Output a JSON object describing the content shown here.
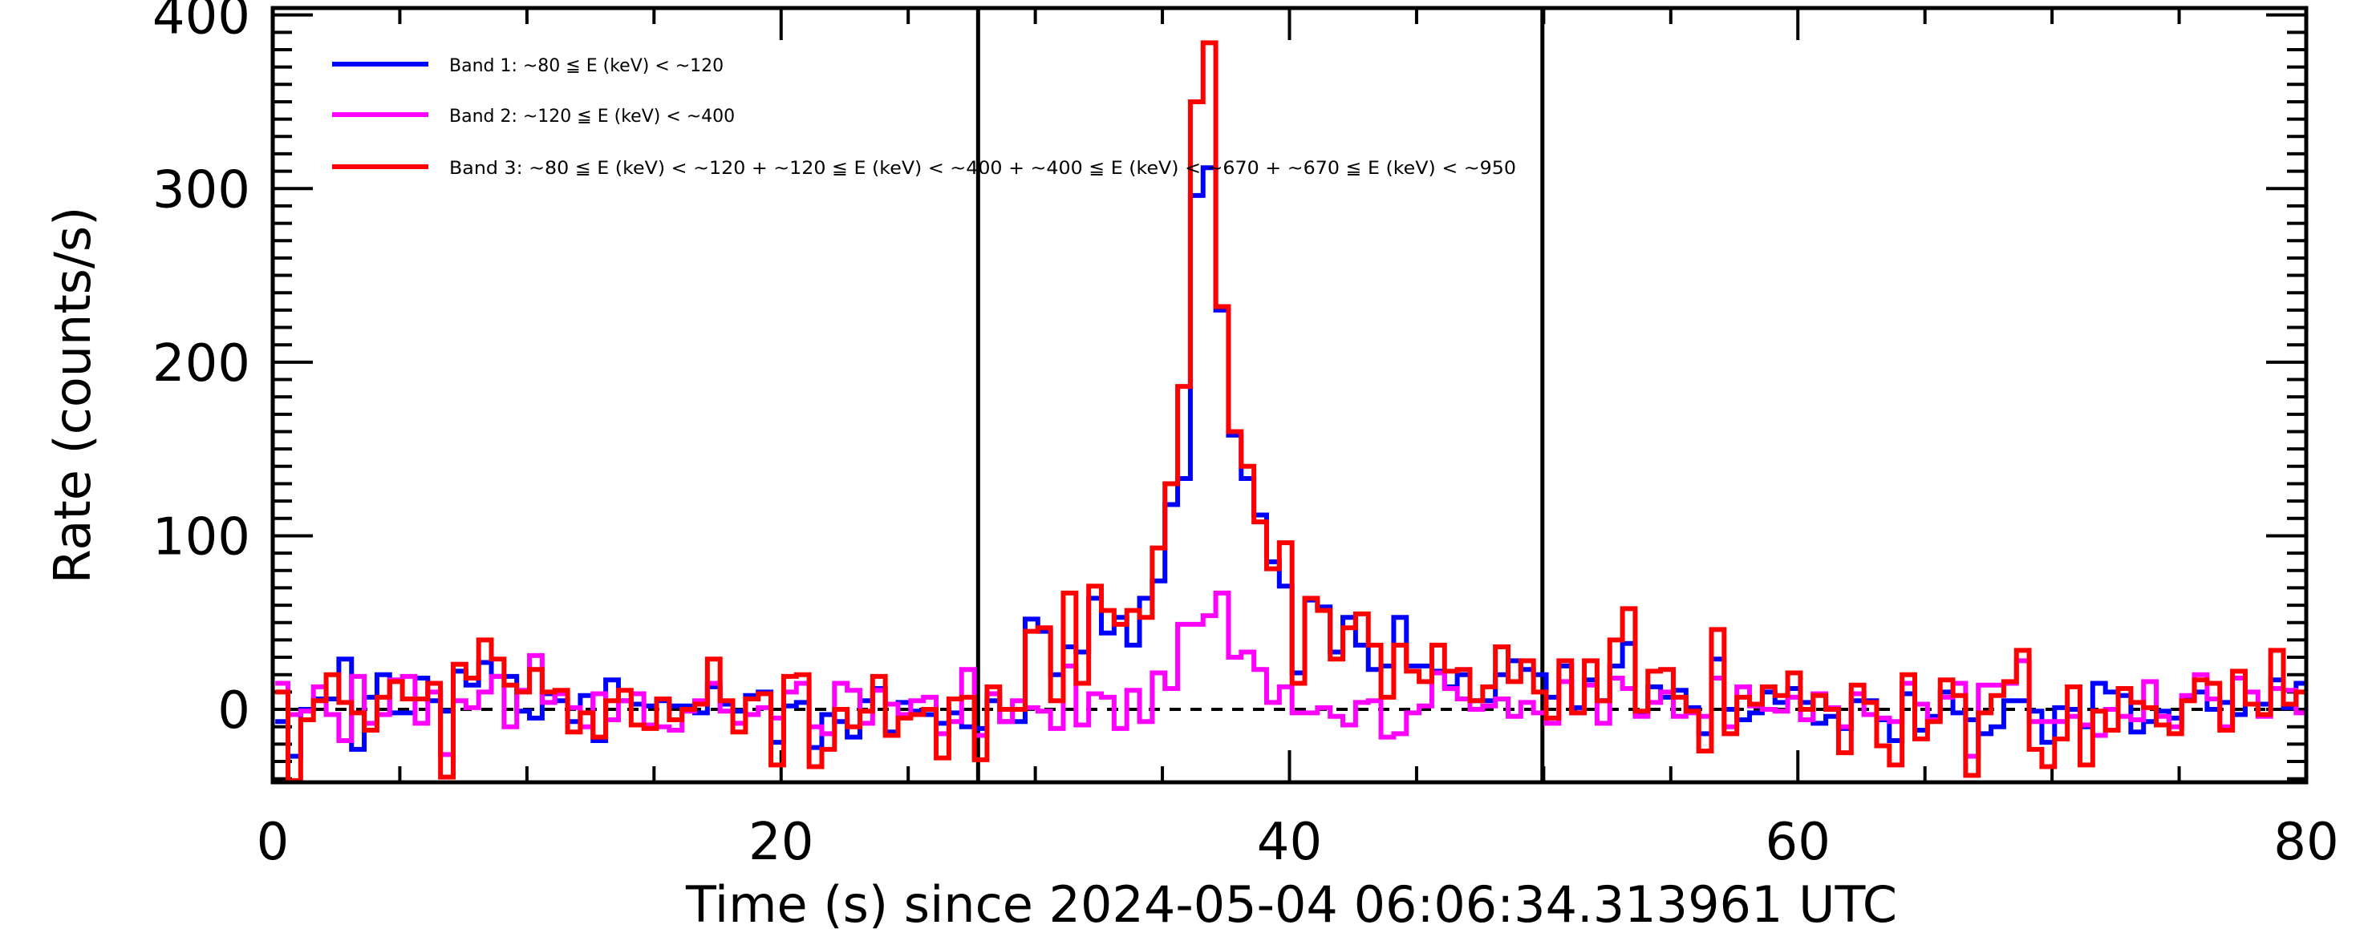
{
  "chart_data": {
    "type": "line",
    "style": "histogram-steps",
    "title": "",
    "xlabel": "Time (s) since 2024-05-04 06:06:34.313961 UTC",
    "ylabel": "Rate (counts/s)",
    "xlim": [
      0,
      80
    ],
    "ylim": [
      -42,
      404
    ],
    "xticks": [
      0,
      20,
      40,
      60,
      80
    ],
    "xtick_labels": [
      "0",
      "20",
      "40",
      "60",
      "80"
    ],
    "x_minor_step": 5,
    "yticks": [
      0,
      100,
      200,
      300,
      400
    ],
    "ytick_labels": [
      "0",
      "100",
      "200",
      "300",
      "400"
    ],
    "y_minor_step": 10,
    "grid": false,
    "legend_position": "top-left",
    "bin_start": 0.1,
    "bin_width": 0.5,
    "baseline": 0,
    "vertical_markers": [
      27.75,
      49.95
    ],
    "series": [
      {
        "name": "Band 1: ~80 ≦ E (keV) < ~120",
        "color": "#0000ff",
        "values": [
          -7,
          -27,
          0,
          6,
          6,
          29,
          -23,
          7,
          20,
          -2,
          -2,
          18,
          5,
          -1,
          22,
          14,
          27,
          19,
          19,
          -1,
          -5,
          9,
          5,
          -7,
          8,
          -18,
          17,
          5,
          3,
          2,
          5,
          2,
          2,
          -2,
          13,
          3,
          -1,
          8,
          10,
          -19,
          2,
          4,
          -22,
          -3,
          -7,
          -16,
          5,
          12,
          -13,
          4,
          -1,
          -3,
          -8,
          -2,
          -10,
          -11,
          5,
          -7,
          -7,
          52,
          45,
          20,
          36,
          33,
          64,
          44,
          53,
          37,
          64,
          74,
          118,
          133,
          296,
          312,
          230,
          158,
          133,
          112,
          85,
          71,
          21,
          63,
          59,
          33,
          53,
          37,
          23,
          25,
          53,
          25,
          25,
          22,
          13,
          20,
          5,
          5,
          20,
          28,
          23,
          20,
          7,
          25,
          1,
          17,
          5,
          25,
          38,
          -2,
          13,
          7,
          11,
          1,
          -14,
          29,
          0,
          -6,
          -2,
          10,
          4,
          12,
          4,
          -8,
          -4,
          -11,
          5,
          5,
          -6,
          -18,
          9,
          -12,
          -4,
          10,
          -2,
          -6,
          -14,
          -10,
          5,
          5,
          -1,
          -19,
          1,
          0,
          -10,
          15,
          10,
          8,
          -13,
          -7,
          -1,
          -5,
          6,
          10,
          0,
          4,
          -3,
          3,
          3,
          17,
          1,
          15
        ]
      },
      {
        "name": "Band 2: ~120 ≦ E (keV) < ~400",
        "color": "#ff00ff",
        "values": [
          15,
          -3,
          -1,
          13,
          -3,
          -18,
          19,
          -8,
          -3,
          17,
          19,
          -8,
          10,
          -26,
          5,
          1,
          10,
          19,
          -10,
          11,
          31,
          4,
          9,
          1,
          -10,
          9,
          -6,
          5,
          9,
          -9,
          -10,
          -12,
          -1,
          5,
          15,
          -1,
          -8,
          -3,
          1,
          -5,
          10,
          15,
          -10,
          -14,
          15,
          11,
          -8,
          11,
          3,
          -3,
          5,
          7,
          -14,
          -7,
          23,
          -15,
          9,
          -7,
          5,
          1,
          -1,
          -11,
          25,
          -9,
          9,
          7,
          -11,
          11,
          -7,
          21,
          12,
          49,
          49,
          54,
          67,
          30,
          33,
          23,
          4,
          13,
          -2,
          -2,
          1,
          -4,
          -9,
          4,
          5,
          -16,
          -14,
          -2,
          2,
          21,
          12,
          6,
          0,
          2,
          6,
          -4,
          4,
          -2,
          -8,
          16,
          -2,
          14,
          -8,
          18,
          12,
          -4,
          4,
          10,
          -4,
          -2,
          -4,
          18,
          -10,
          13,
          2,
          0,
          -1,
          7,
          -6,
          9,
          1,
          -10,
          9,
          -3,
          -5,
          -7,
          15,
          3,
          -6,
          7,
          15,
          -27,
          14,
          14,
          15,
          28,
          -7,
          -7,
          -7,
          -4,
          -9,
          -15,
          0,
          -4,
          -6,
          16,
          -4,
          -10,
          8,
          20,
          6,
          -10,
          18,
          10,
          -4,
          12,
          11,
          -2
        ]
      },
      {
        "name": "Band 3: ~80 ≦ E (keV) < ~120 + ~120 ≦ E (keV) < ~400 + ~400 ≦ E (keV) < ~670 + ~670 ≦ E (keV) < ~950",
        "color": "#ff0000",
        "values": [
          10,
          -41,
          -6,
          5,
          20,
          4,
          -2,
          -12,
          7,
          16,
          6,
          6,
          15,
          -39,
          26,
          18,
          40,
          29,
          14,
          10,
          23,
          10,
          11,
          -13,
          -2,
          -16,
          5,
          11,
          -9,
          -11,
          6,
          -6,
          0,
          3,
          29,
          5,
          -13,
          6,
          9,
          -32,
          19,
          20,
          -33,
          -23,
          0,
          -10,
          -1,
          19,
          -15,
          -5,
          -3,
          0,
          -28,
          6,
          7,
          -29,
          13,
          0,
          0,
          45,
          47,
          5,
          67,
          15,
          71,
          57,
          49,
          57,
          53,
          93,
          130,
          186,
          350,
          384,
          232,
          160,
          140,
          108,
          81,
          96,
          15,
          64,
          57,
          29,
          47,
          55,
          37,
          7,
          37,
          22,
          16,
          37,
          22,
          23,
          5,
          13,
          36,
          16,
          28,
          10,
          -5,
          28,
          -2,
          28,
          5,
          40,
          58,
          -1,
          22,
          23,
          7,
          -1,
          -24,
          46,
          -14,
          7,
          3,
          13,
          8,
          21,
          0,
          8,
          0,
          -25,
          14,
          4,
          -21,
          -32,
          20,
          -17,
          -7,
          17,
          8,
          -38,
          -2,
          8,
          16,
          34,
          -23,
          -33,
          -17,
          13,
          -32,
          -1,
          -12,
          12,
          4,
          1,
          -9,
          -14,
          5,
          17,
          15,
          -12,
          22,
          3,
          -3,
          34,
          3,
          10
        ]
      }
    ]
  }
}
